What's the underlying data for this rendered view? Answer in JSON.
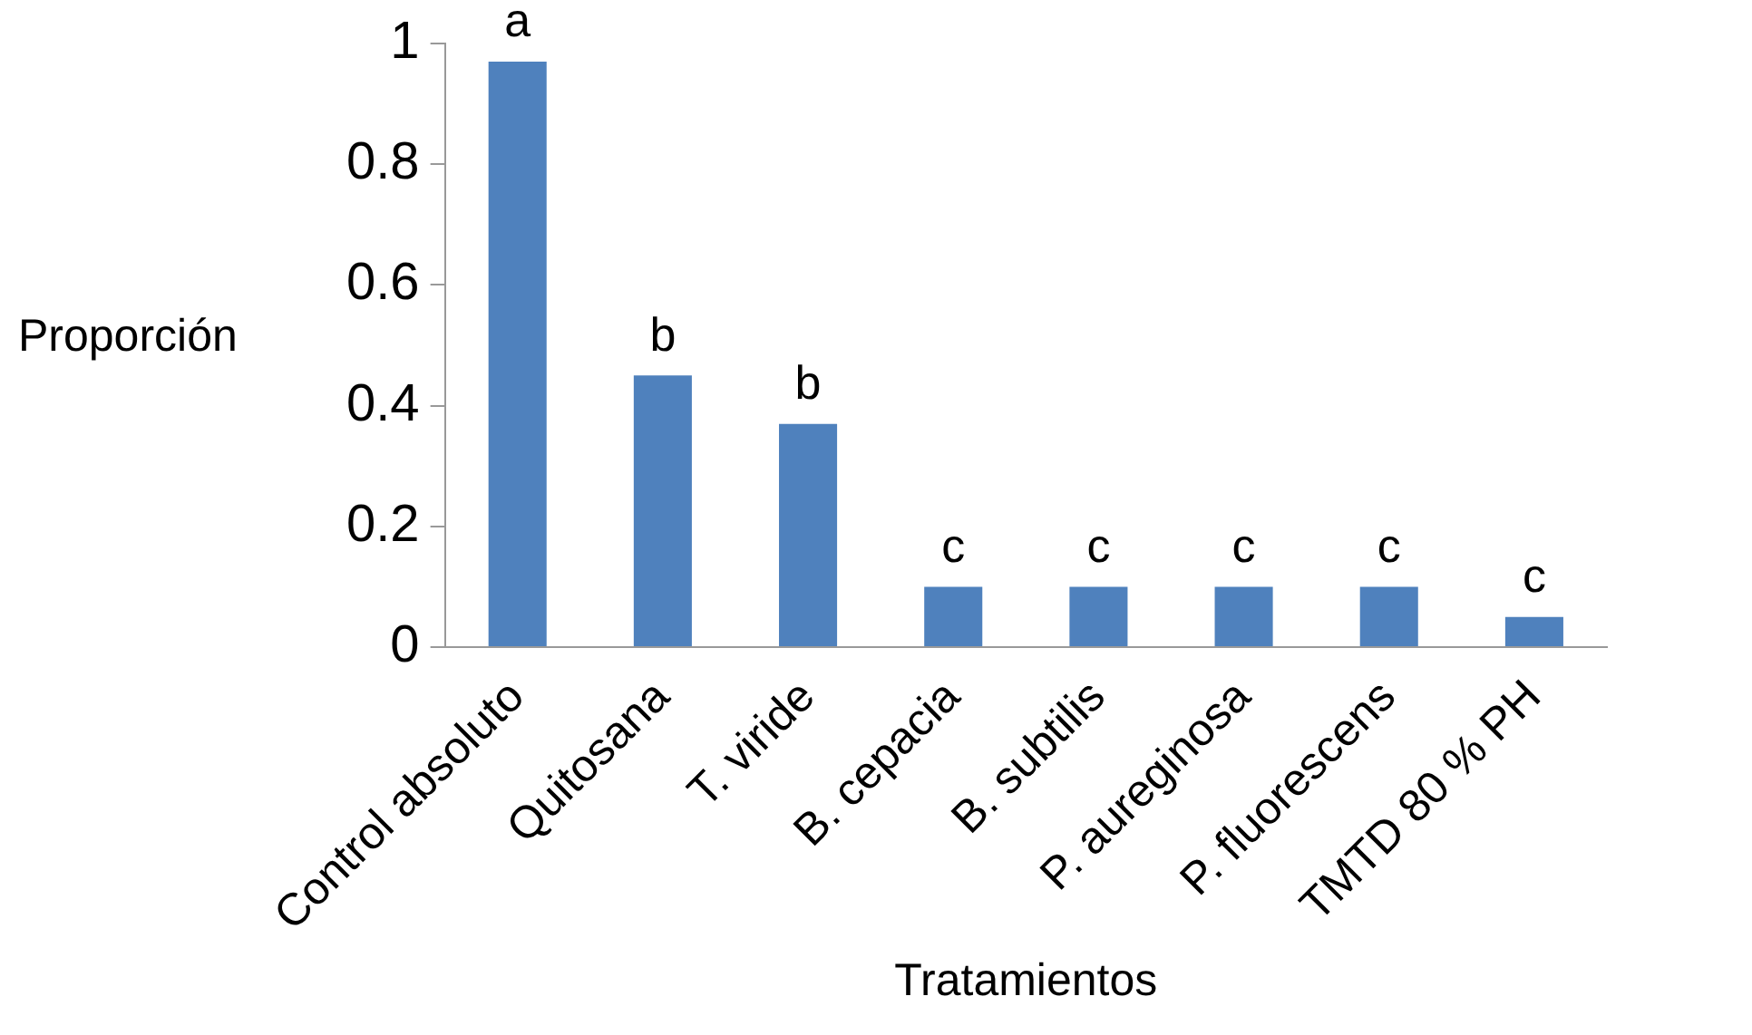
{
  "chart_data": {
    "type": "bar",
    "xlabel": "Tratamientos",
    "ylabel": "Proporción",
    "categories": [
      "Control absoluto",
      "Quitosana",
      "T. viride",
      "B. cepacia",
      "B. subtilis",
      "P. aureginosa",
      "P. fluorescens",
      "TMTD 80 % PH"
    ],
    "values": [
      0.97,
      0.45,
      0.37,
      0.1,
      0.1,
      0.1,
      0.1,
      0.05
    ],
    "color": "#4f81bd",
    "ylim": [
      0,
      1
    ],
    "yticks": [
      0,
      0.2,
      0.4,
      0.6,
      0.8,
      1
    ],
    "grid": false,
    "legend": false,
    "annotations": [
      {
        "text": "a",
        "x": "Control absoluto",
        "y": 0.97
      },
      {
        "text": "b",
        "x": "Quitosana",
        "y": 0.45
      },
      {
        "text": "b",
        "x": "T. viride",
        "y": 0.37
      },
      {
        "text": "c",
        "x": "B. cepacia",
        "y": 0.1
      },
      {
        "text": "c",
        "x": "B. subtilis",
        "y": 0.1
      },
      {
        "text": "c",
        "x": "P. aureginosa",
        "y": 0.1
      },
      {
        "text": "c",
        "x": "P. fluorescens",
        "y": 0.1
      },
      {
        "text": "c",
        "x": "TMTD 80 % PH",
        "y": 0.05
      }
    ]
  }
}
